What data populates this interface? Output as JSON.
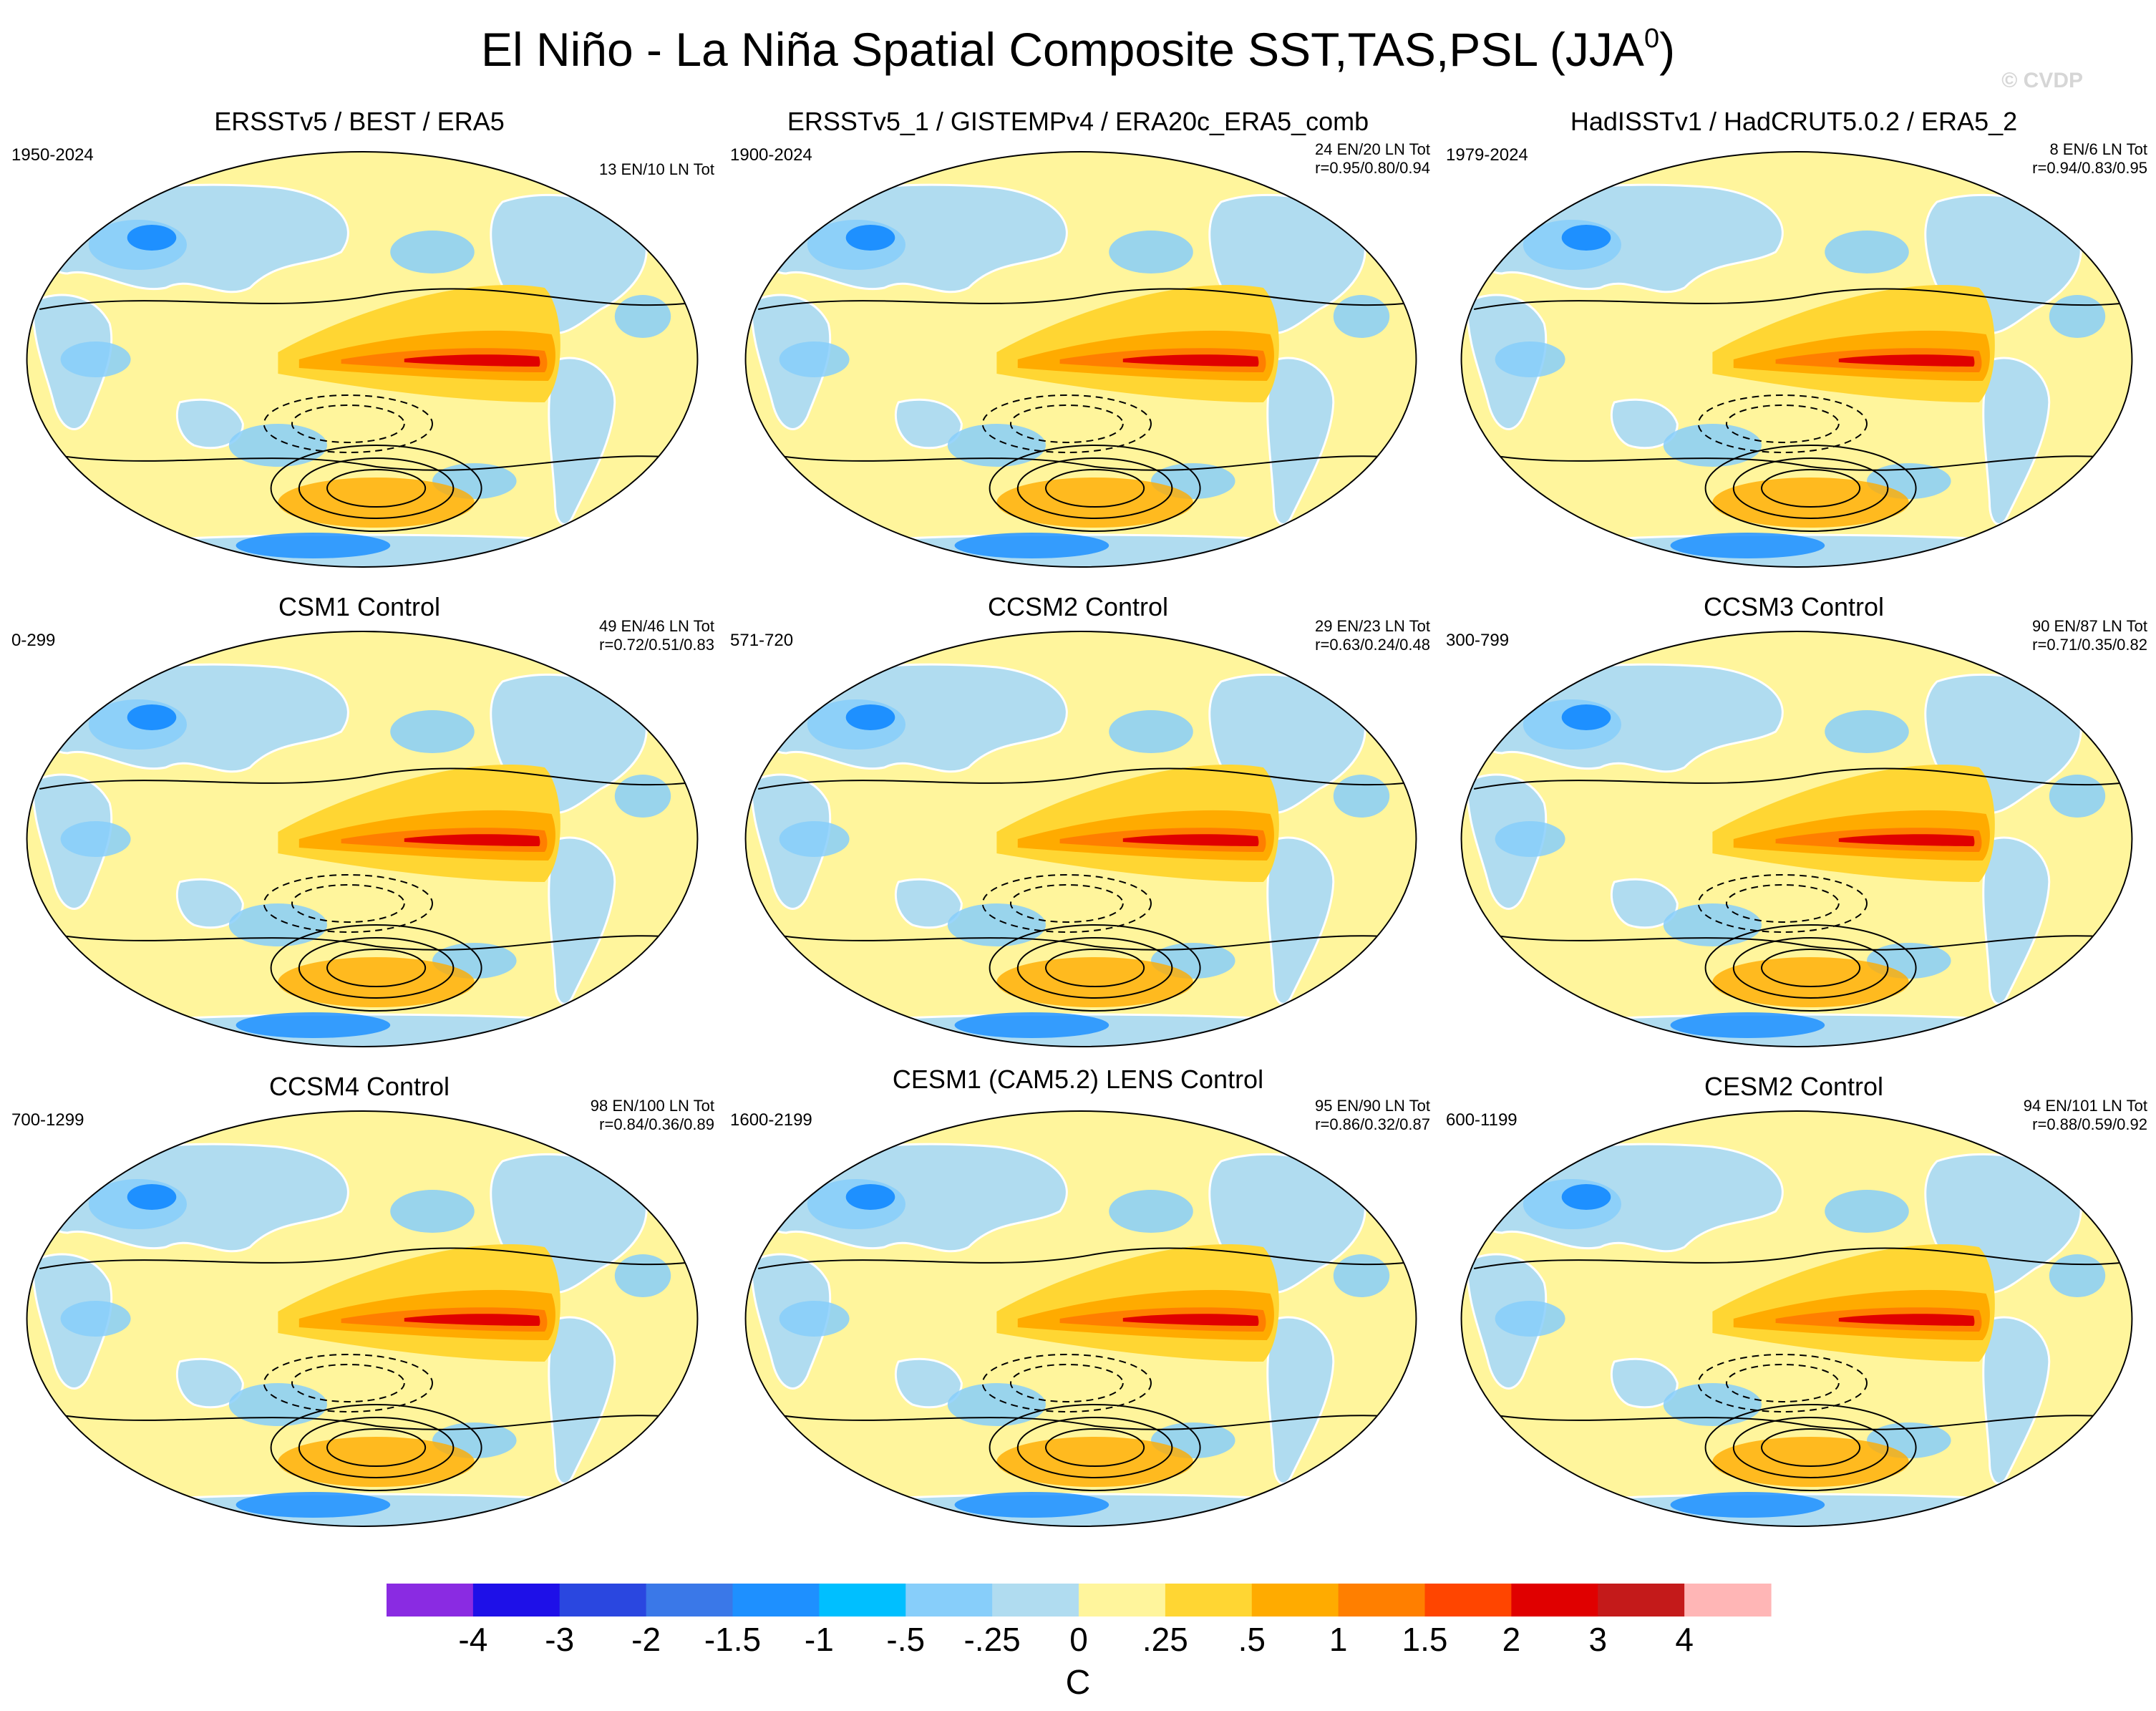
{
  "figure": {
    "title": "El Niño - La Niña Spatial Composite SST,TAS,PSL (JJA",
    "title_superscript": "0",
    "title_close": ")",
    "watermark": "© CVDP"
  },
  "panels": [
    {
      "title": "ERSSTv5 / BEST / ERA5",
      "years": "1950-2024",
      "events": "13 EN/10 LN Tot",
      "corr": ""
    },
    {
      "title": "ERSSTv5_1 / GISTEMPv4 / ERA20c_ERA5_comb",
      "years": "1900-2024",
      "events": "24 EN/20 LN Tot",
      "corr": "r=0.95/0.80/0.94"
    },
    {
      "title": "HadISSTv1 / HadCRUT5.0.2 / ERA5_2",
      "years": "1979-2024",
      "events": "8 EN/6 LN Tot",
      "corr": "r=0.94/0.83/0.95"
    },
    {
      "title": "CSM1 Control",
      "years": "0-299",
      "events": "49 EN/46 LN Tot",
      "corr": "r=0.72/0.51/0.83"
    },
    {
      "title": "CCSM2 Control",
      "years": "571-720",
      "events": "29 EN/23 LN Tot",
      "corr": "r=0.63/0.24/0.48"
    },
    {
      "title": "CCSM3 Control",
      "years": "300-799",
      "events": "90 EN/87 LN Tot",
      "corr": "r=0.71/0.35/0.82"
    },
    {
      "title": "CCSM4 Control",
      "years": "700-1299",
      "events": "98 EN/100 LN Tot",
      "corr": "r=0.84/0.36/0.89"
    },
    {
      "title": "CESM1 (CAM5.2) LENS Control",
      "years": "1600-2199",
      "events": "95 EN/90 LN Tot",
      "corr": "r=0.86/0.32/0.87"
    },
    {
      "title": "CESM2 Control",
      "years": "600-1199",
      "events": "94 EN/101 LN Tot",
      "corr": "r=0.88/0.59/0.92"
    }
  ],
  "colorbar": {
    "colors": [
      "#8a2be2",
      "#1e10e8",
      "#2a47e0",
      "#3a78e8",
      "#1e90ff",
      "#00bfff",
      "#87cefa",
      "#b0dcf0",
      "#fff59c",
      "#ffd633",
      "#ffab00",
      "#ff7f00",
      "#ff4500",
      "#e00000",
      "#c41a1a",
      "#ffb6b6"
    ],
    "labels": [
      "-4",
      "-3",
      "-2",
      "-1.5",
      "-1",
      "-.5",
      "-.25",
      "0",
      ".25",
      ".5",
      "1",
      "1.5",
      "2",
      "3",
      "4"
    ],
    "unit": "C"
  },
  "palette": {
    "ocean_base": "#fff59c",
    "land_base": "#b0dcf0",
    "warm1": "#ffd633",
    "warm2": "#ffab00",
    "warm3": "#ff7f00",
    "warm4": "#ff4500",
    "warm5": "#e00000",
    "cool1": "#87cefa",
    "cool2": "#1e90ff",
    "cool3": "#2a47e0"
  }
}
